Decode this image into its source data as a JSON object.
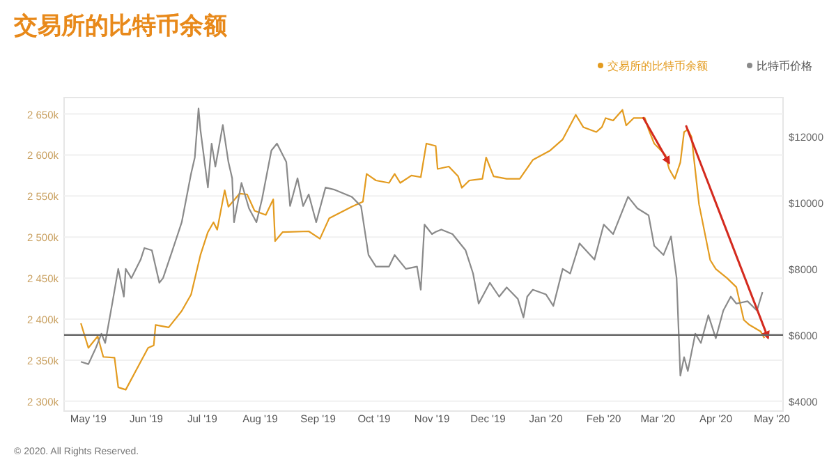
{
  "chart_data": {
    "type": "line",
    "title": "交易所的比特币余额",
    "legend": "top right",
    "grid": "y",
    "xlim": [
      "2019-04-18",
      "2020-05-07"
    ],
    "xticks": [
      {
        "value": "2019-05-01",
        "label": "May '19"
      },
      {
        "value": "2019-06-01",
        "label": "Jun '19"
      },
      {
        "value": "2019-07-01",
        "label": "Jul '19"
      },
      {
        "value": "2019-08-01",
        "label": "Aug '19"
      },
      {
        "value": "2019-09-01",
        "label": "Sep '19"
      },
      {
        "value": "2019-10-01",
        "label": "Oct '19"
      },
      {
        "value": "2019-11-01",
        "label": "Nov '19"
      },
      {
        "value": "2019-12-01",
        "label": "Dec '19"
      },
      {
        "value": "2020-01-01",
        "label": "Jan '20"
      },
      {
        "value": "2020-02-01",
        "label": "Feb '20"
      },
      {
        "value": "2020-03-01",
        "label": "Mar '20"
      },
      {
        "value": "2020-04-01",
        "label": "Apr '20"
      },
      {
        "value": "2020-05-01",
        "label": "May '20"
      }
    ],
    "ylim": [
      2288,
      2670
    ],
    "yticks": [
      {
        "value": 2300,
        "label": "2 300k"
      },
      {
        "value": 2350,
        "label": "2 350k"
      },
      {
        "value": 2400,
        "label": "2 400k"
      },
      {
        "value": 2450,
        "label": "2 450k"
      },
      {
        "value": 2500,
        "label": "2 500k"
      },
      {
        "value": 2550,
        "label": "2 550k"
      },
      {
        "value": 2600,
        "label": "2 600k"
      },
      {
        "value": 2650,
        "label": "2 650k"
      }
    ],
    "y2lim": [
      3700,
      13180
    ],
    "y2ticks": [
      {
        "value": 4000,
        "label": "$4000"
      },
      {
        "value": 6000,
        "label": "$6000"
      },
      {
        "value": 8000,
        "label": "$8000"
      },
      {
        "value": 10000,
        "label": "$10000"
      },
      {
        "value": 12000,
        "label": "$12000"
      }
    ],
    "ref_lines": [
      {
        "axis": "y2",
        "value": 6000,
        "color": "#666666"
      }
    ],
    "annotations": [
      "© 2020. All Rights Reserved."
    ],
    "series": [
      {
        "name": "交易所的比特币余额",
        "color": "#e39b1f",
        "x": [
          "2019-04-27",
          "2019-05-01",
          "2019-05-06",
          "2019-05-09",
          "2019-05-15",
          "2019-05-17",
          "2019-05-21",
          "2019-05-29",
          "2019-06-02",
          "2019-06-05",
          "2019-06-06",
          "2019-06-13",
          "2019-06-20",
          "2019-06-25",
          "2019-06-30",
          "2019-07-04",
          "2019-07-07",
          "2019-07-09",
          "2019-07-13",
          "2019-07-15",
          "2019-07-21",
          "2019-07-25",
          "2019-07-29",
          "2019-08-04",
          "2019-08-08",
          "2019-08-09",
          "2019-08-13",
          "2019-08-27",
          "2019-09-02",
          "2019-09-07",
          "2019-09-19",
          "2019-09-25",
          "2019-09-27",
          "2019-10-02",
          "2019-10-09",
          "2019-10-12",
          "2019-10-15",
          "2019-10-21",
          "2019-10-26",
          "2019-10-29",
          "2019-11-03",
          "2019-11-04",
          "2019-11-10",
          "2019-11-15",
          "2019-11-17",
          "2019-11-21",
          "2019-11-28",
          "2019-11-30",
          "2019-12-04",
          "2019-12-11",
          "2019-12-18",
          "2019-12-25",
          "2020-01-03",
          "2020-01-10",
          "2020-01-17",
          "2020-01-21",
          "2020-01-28",
          "2020-01-31",
          "2020-02-02",
          "2020-02-06",
          "2020-02-11",
          "2020-02-13",
          "2020-02-17",
          "2020-02-23",
          "2020-02-25",
          "2020-02-28",
          "2020-03-05",
          "2020-03-07",
          "2020-03-10",
          "2020-03-13",
          "2020-03-15",
          "2020-03-17",
          "2020-03-19",
          "2020-03-23",
          "2020-03-29",
          "2020-04-01",
          "2020-04-07",
          "2020-04-12",
          "2020-04-16",
          "2020-04-19",
          "2020-04-25",
          "2020-04-27"
        ],
        "values": [
          2395,
          2365,
          2379,
          2354,
          2353,
          2317,
          2314,
          2348,
          2365,
          2368,
          2393,
          2390,
          2410,
          2430,
          2478,
          2506,
          2518,
          2509,
          2557,
          2537,
          2553,
          2552,
          2532,
          2527,
          2546,
          2495,
          2506,
          2507,
          2498,
          2523,
          2537,
          2543,
          2577,
          2569,
          2566,
          2577,
          2566,
          2575,
          2573,
          2614,
          2611,
          2583,
          2586,
          2574,
          2560,
          2569,
          2571,
          2597,
          2574,
          2571,
          2571,
          2594,
          2605,
          2619,
          2649,
          2634,
          2628,
          2634,
          2645,
          2642,
          2655,
          2636,
          2645,
          2645,
          2631,
          2614,
          2600,
          2583,
          2571,
          2591,
          2628,
          2631,
          2622,
          2540,
          2472,
          2461,
          2450,
          2439,
          2399,
          2393,
          2385,
          2377
        ]
      },
      {
        "name": "比特币价格",
        "color": "#8a8a8a",
        "axis": "y2",
        "x": [
          "2019-04-27",
          "2019-05-01",
          "2019-05-05",
          "2019-05-08",
          "2019-05-10",
          "2019-05-14",
          "2019-05-17",
          "2019-05-20",
          "2019-05-21",
          "2019-05-24",
          "2019-05-29",
          "2019-05-31",
          "2019-06-04",
          "2019-06-08",
          "2019-06-10",
          "2019-06-15",
          "2019-06-20",
          "2019-06-25",
          "2019-06-27",
          "2019-06-29",
          "2019-06-30",
          "2019-07-04",
          "2019-07-06",
          "2019-07-08",
          "2019-07-12",
          "2019-07-15",
          "2019-07-17",
          "2019-07-18",
          "2019-07-22",
          "2019-07-26",
          "2019-07-30",
          "2019-08-02",
          "2019-08-07",
          "2019-08-10",
          "2019-08-15",
          "2019-08-17",
          "2019-08-21",
          "2019-08-24",
          "2019-08-27",
          "2019-08-31",
          "2019-09-05",
          "2019-09-10",
          "2019-09-19",
          "2019-09-24",
          "2019-09-28",
          "2019-10-02",
          "2019-10-09",
          "2019-10-12",
          "2019-10-18",
          "2019-10-24",
          "2019-10-26",
          "2019-10-28",
          "2019-11-01",
          "2019-11-03",
          "2019-11-06",
          "2019-11-12",
          "2019-11-19",
          "2019-11-23",
          "2019-11-26",
          "2019-12-02",
          "2019-12-07",
          "2019-12-11",
          "2019-12-17",
          "2019-12-20",
          "2019-12-22",
          "2019-12-25",
          "2020-01-01",
          "2020-01-05",
          "2020-01-10",
          "2020-01-14",
          "2020-01-19",
          "2020-01-27",
          "2020-02-01",
          "2020-02-06",
          "2020-02-14",
          "2020-02-19",
          "2020-02-25",
          "2020-02-28",
          "2020-03-04",
          "2020-03-08",
          "2020-03-11",
          "2020-03-13",
          "2020-03-15",
          "2020-03-17",
          "2020-03-21",
          "2020-03-24",
          "2020-03-28",
          "2020-04-01",
          "2020-04-05",
          "2020-04-09",
          "2020-04-12",
          "2020-04-18",
          "2020-04-23",
          "2020-04-26"
        ],
        "values": [
          5190,
          5120,
          5610,
          6040,
          5760,
          7020,
          8000,
          7160,
          8000,
          7720,
          8280,
          8630,
          8560,
          7580,
          7720,
          8560,
          9410,
          10880,
          11370,
          12850,
          12210,
          10460,
          11790,
          11090,
          12350,
          11230,
          10740,
          9410,
          10600,
          9830,
          9410,
          10110,
          11580,
          11790,
          11230,
          9900,
          10740,
          9900,
          10250,
          9410,
          10460,
          10390,
          10180,
          9900,
          8420,
          8070,
          8070,
          8420,
          8000,
          8070,
          7370,
          9340,
          9050,
          9120,
          9190,
          9050,
          8560,
          7860,
          6950,
          7580,
          7160,
          7440,
          7090,
          6530,
          7160,
          7370,
          7230,
          6880,
          8000,
          7860,
          8770,
          8280,
          9340,
          9050,
          10180,
          9830,
          9620,
          8700,
          8420,
          8980,
          7720,
          4770,
          5330,
          4910,
          6040,
          5760,
          6600,
          5900,
          6740,
          7160,
          6950,
          7020,
          6740,
          7300
        ]
      }
    ]
  }
}
